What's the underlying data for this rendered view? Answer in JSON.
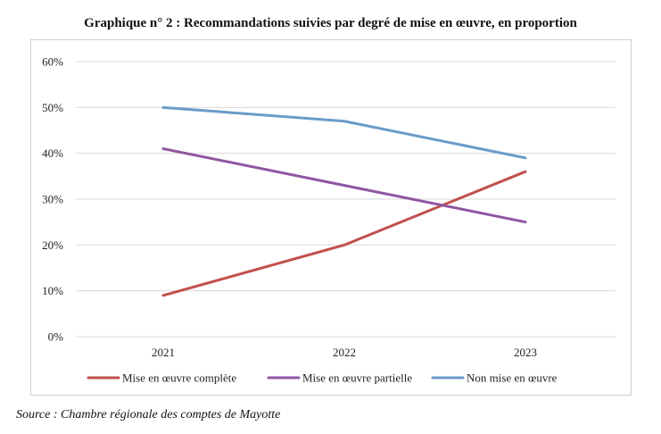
{
  "figure": {
    "title": "Graphique n° 2 :  Recommandations suivies par degré de mise en œuvre, en proportion",
    "source": "Source : Chambre régionale des comptes de Mayotte"
  },
  "chart_data": {
    "type": "line",
    "title": "Graphique n° 2 :  Recommandations suivies par degré de mise en œuvre, en proportion",
    "categories": [
      "2021",
      "2022",
      "2023"
    ],
    "ylim": [
      0,
      60
    ],
    "yticks": [
      "0%",
      "10%",
      "20%",
      "30%",
      "40%",
      "50%",
      "60%"
    ],
    "grid": true,
    "legend_position": "bottom",
    "series": [
      {
        "name": "Mise en œuvre complète",
        "color": "#c0504d",
        "values": [
          9,
          20,
          36
        ]
      },
      {
        "name": "Mise en œuvre partielle",
        "color": "#8e56a0",
        "values": [
          41,
          33,
          25
        ]
      },
      {
        "name": "Non mise en œuvre",
        "color": "#6b9bc8",
        "values": [
          50,
          47,
          39
        ]
      }
    ]
  }
}
